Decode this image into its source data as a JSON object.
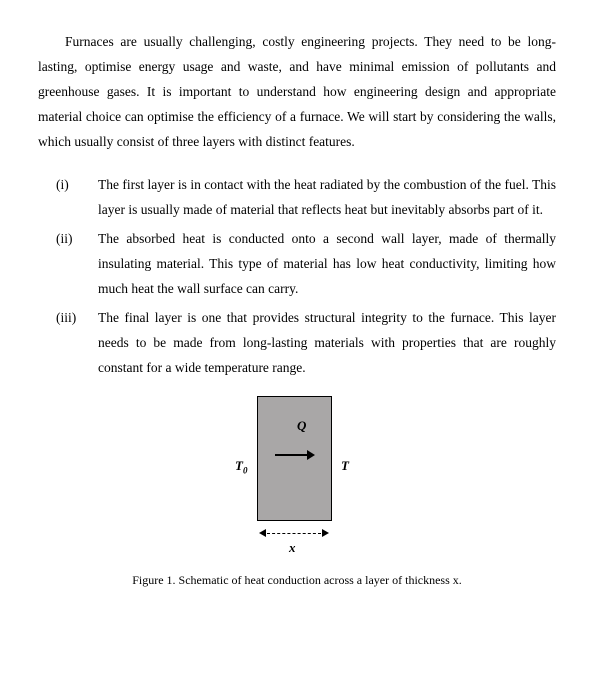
{
  "intro": "Furnaces are usually challenging, costly engineering projects. They need to be long-lasting, optimise energy usage and waste, and have minimal emission of pollutants and greenhouse gases. It is important to understand how engineering design and appropriate material choice can optimise the efficiency of a furnace. We will start by considering the walls, which usually consist of three layers with distinct features.",
  "items": [
    {
      "marker": "(i)",
      "text": "The first layer is in contact with the heat radiated by the combustion of the fuel. This layer is usually made of material that reflects heat but inevitably absorbs part of it."
    },
    {
      "marker": "(ii)",
      "text": "The absorbed heat is conducted onto a second wall layer, made of thermally insulating material. This type of material has low heat conductivity, limiting how much heat the wall surface can carry."
    },
    {
      "marker": "(iii)",
      "text": "The final layer is one that provides structural integrity to the furnace. This layer needs to be made from long-lasting materials with properties that are roughly constant for a wide temperature range."
    }
  ],
  "diagram": {
    "q": "Q",
    "t0": "T",
    "t0_sub": "0",
    "t": "T",
    "x": "x",
    "rect_fill": "#a9a7a7",
    "rect_border": "#000000"
  },
  "caption": "Figure 1. Schematic of heat conduction across a layer of thickness x."
}
